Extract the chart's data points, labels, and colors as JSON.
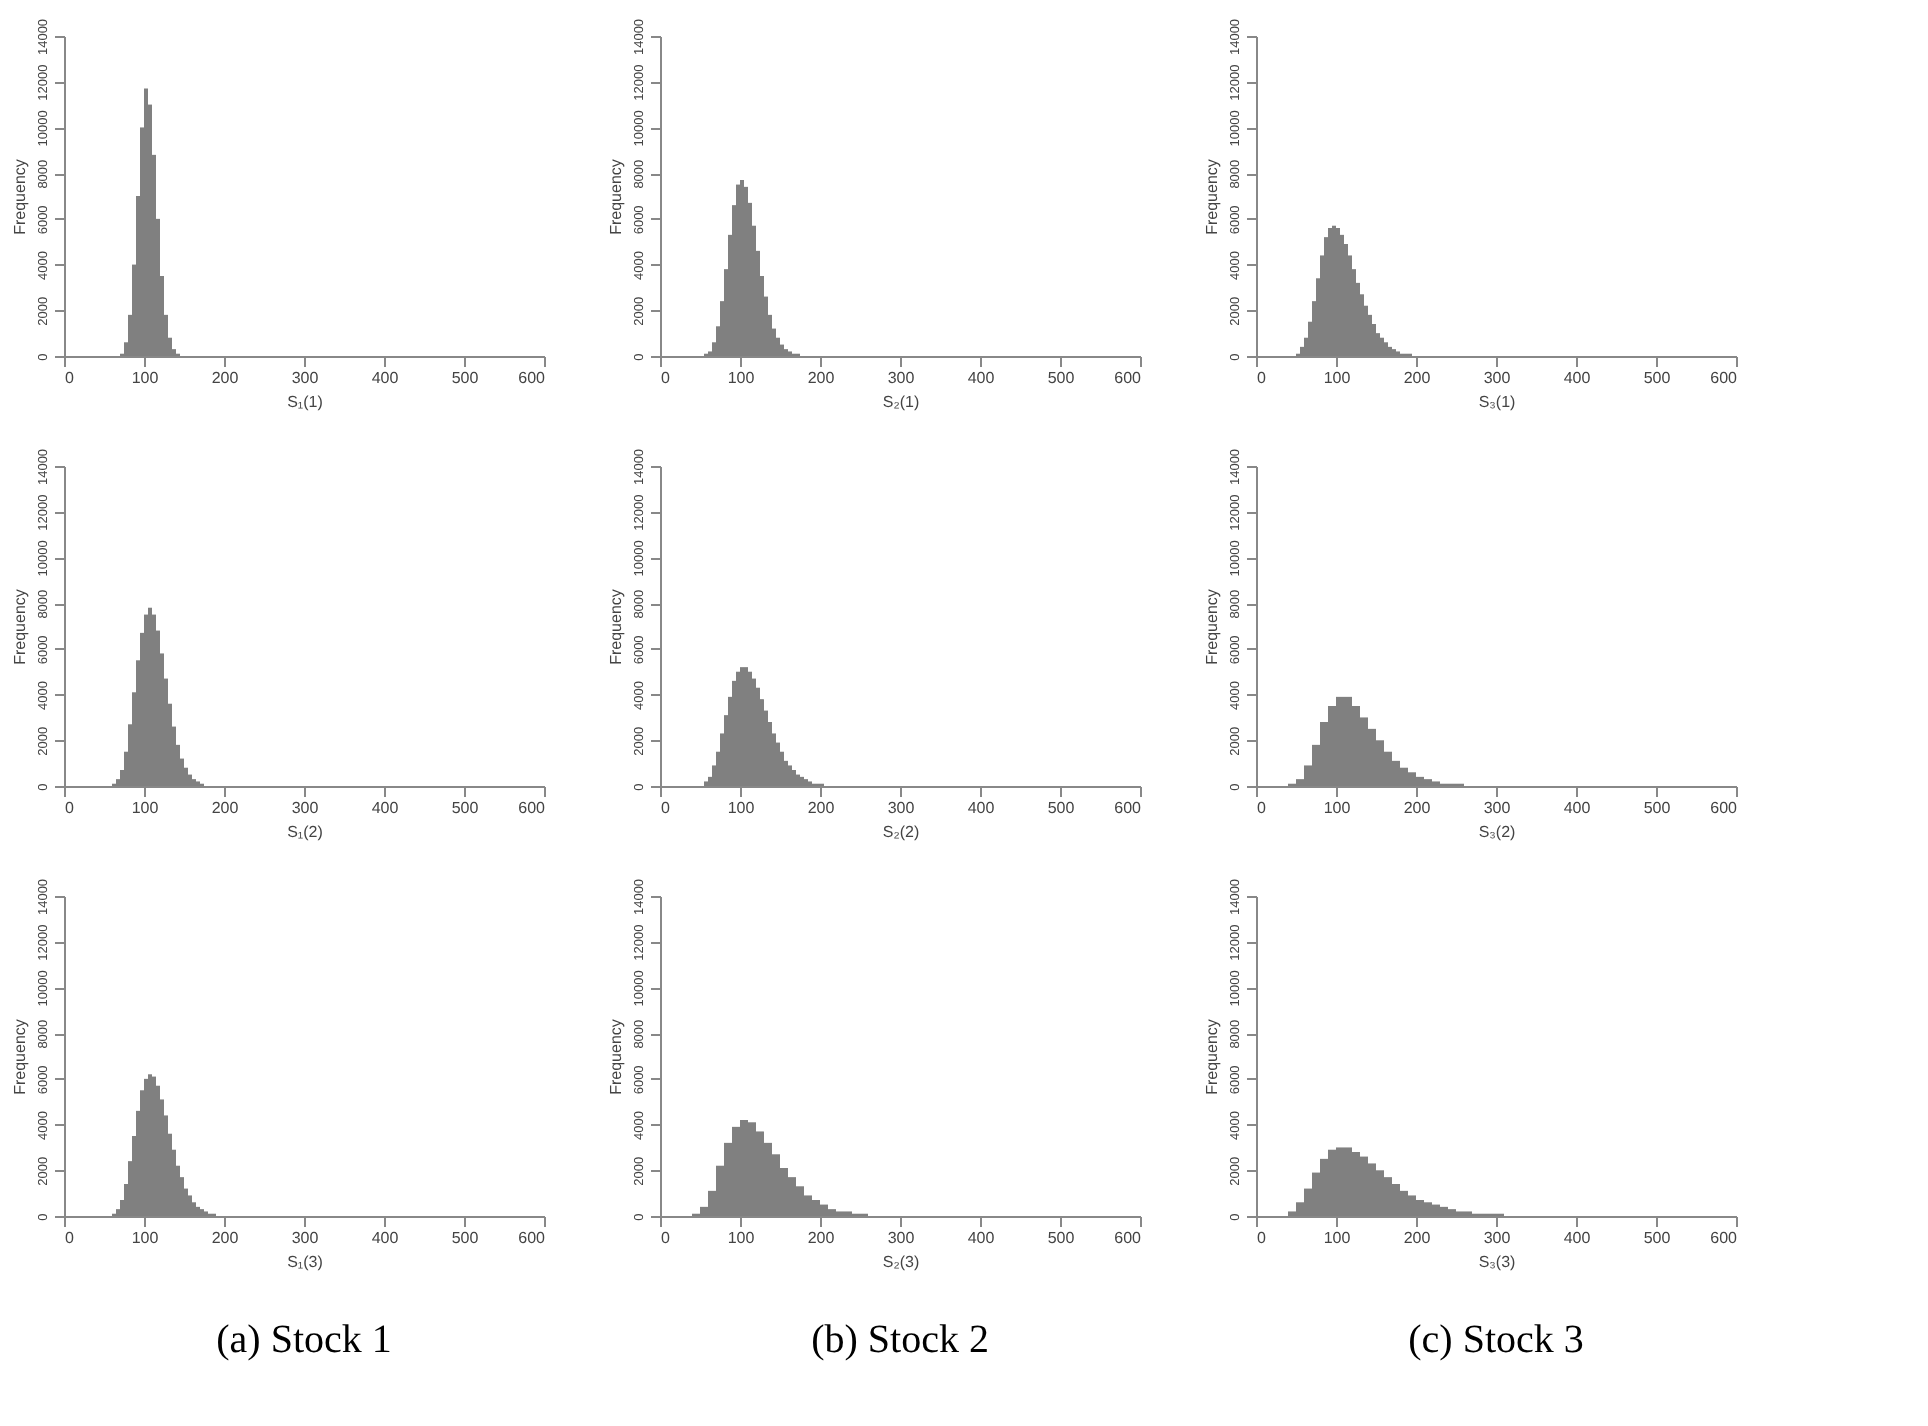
{
  "chart_data": [
    {
      "type": "histogram",
      "xlabel": "S₁(1)",
      "ylabel": "Frequency",
      "color": "#808080",
      "xlim": [
        0,
        600
      ],
      "xticks": [
        0,
        100,
        200,
        300,
        400,
        500,
        600
      ],
      "ylim": [
        0,
        14000
      ],
      "yticks": [
        0,
        2000,
        4000,
        6000,
        8000,
        10000,
        12000,
        14000
      ],
      "grid": false,
      "bins": [
        70,
        75,
        80,
        85,
        90,
        95,
        100,
        105,
        110,
        115,
        120,
        125,
        130,
        135,
        140,
        145
      ],
      "values": [
        100,
        600,
        1800,
        4000,
        7000,
        10000,
        11700,
        11000,
        8800,
        6000,
        3500,
        1800,
        800,
        300,
        100
      ]
    },
    {
      "type": "histogram",
      "xlabel": "S₂(1)",
      "ylabel": "Frequency",
      "color": "#808080",
      "xlim": [
        0,
        600
      ],
      "xticks": [
        0,
        100,
        200,
        300,
        400,
        500,
        600
      ],
      "ylim": [
        0,
        14000
      ],
      "yticks": [
        0,
        2000,
        4000,
        6000,
        8000,
        10000,
        12000,
        14000
      ],
      "grid": false,
      "bins": [
        55,
        60,
        65,
        70,
        75,
        80,
        85,
        90,
        95,
        100,
        105,
        110,
        115,
        120,
        125,
        130,
        135,
        140,
        145,
        150,
        155,
        160,
        165,
        170,
        175
      ],
      "values": [
        100,
        200,
        600,
        1300,
        2400,
        3800,
        5300,
        6600,
        7500,
        7700,
        7400,
        6700,
        5700,
        4600,
        3500,
        2600,
        1800,
        1200,
        800,
        500,
        300,
        200,
        100,
        100
      ]
    },
    {
      "type": "histogram",
      "xlabel": "S₃(1)",
      "ylabel": "Frequency",
      "color": "#808080",
      "xlim": [
        0,
        600
      ],
      "xticks": [
        0,
        100,
        200,
        300,
        400,
        500,
        600
      ],
      "ylim": [
        0,
        14000
      ],
      "yticks": [
        0,
        2000,
        4000,
        6000,
        8000,
        10000,
        12000,
        14000
      ],
      "grid": false,
      "bins": [
        50,
        55,
        60,
        65,
        70,
        75,
        80,
        85,
        90,
        95,
        100,
        105,
        110,
        115,
        120,
        125,
        130,
        135,
        140,
        145,
        150,
        155,
        160,
        165,
        170,
        175,
        180,
        185,
        190,
        195
      ],
      "values": [
        100,
        400,
        800,
        1500,
        2400,
        3400,
        4400,
        5200,
        5600,
        5700,
        5600,
        5300,
        4900,
        4400,
        3800,
        3200,
        2700,
        2200,
        1800,
        1400,
        1000,
        800,
        600,
        400,
        300,
        200,
        100,
        100,
        100
      ]
    },
    {
      "type": "histogram",
      "xlabel": "S₁(2)",
      "ylabel": "Frequency",
      "color": "#808080",
      "xlim": [
        0,
        600
      ],
      "xticks": [
        0,
        100,
        200,
        300,
        400,
        500,
        600
      ],
      "ylim": [
        0,
        14000
      ],
      "yticks": [
        0,
        2000,
        4000,
        6000,
        8000,
        10000,
        12000,
        14000
      ],
      "grid": false,
      "bins": [
        60,
        65,
        70,
        75,
        80,
        85,
        90,
        95,
        100,
        105,
        110,
        115,
        120,
        125,
        130,
        135,
        140,
        145,
        150,
        155,
        160,
        165,
        170,
        175
      ],
      "values": [
        100,
        300,
        700,
        1500,
        2700,
        4100,
        5500,
        6700,
        7500,
        7800,
        7500,
        6800,
        5800,
        4700,
        3600,
        2600,
        1800,
        1200,
        800,
        500,
        300,
        200,
        100
      ]
    },
    {
      "type": "histogram",
      "xlabel": "S₂(2)",
      "ylabel": "Frequency",
      "color": "#808080",
      "xlim": [
        0,
        600
      ],
      "xticks": [
        0,
        100,
        200,
        300,
        400,
        500,
        600
      ],
      "ylim": [
        0,
        14000
      ],
      "yticks": [
        0,
        2000,
        4000,
        6000,
        8000,
        10000,
        12000,
        14000
      ],
      "grid": false,
      "bins": [
        55,
        60,
        65,
        70,
        75,
        80,
        85,
        90,
        95,
        100,
        105,
        110,
        115,
        120,
        125,
        130,
        135,
        140,
        145,
        150,
        155,
        160,
        165,
        170,
        175,
        180,
        185,
        190,
        195,
        200,
        205
      ],
      "values": [
        200,
        400,
        900,
        1500,
        2300,
        3100,
        3900,
        4600,
        5000,
        5200,
        5200,
        5000,
        4700,
        4300,
        3800,
        3300,
        2800,
        2300,
        1900,
        1500,
        1100,
        900,
        700,
        500,
        400,
        300,
        200,
        100,
        100,
        100
      ]
    },
    {
      "type": "histogram",
      "xlabel": "S₃(2)",
      "ylabel": "Frequency",
      "color": "#808080",
      "xlim": [
        0,
        600
      ],
      "xticks": [
        0,
        100,
        200,
        300,
        400,
        500,
        600
      ],
      "ylim": [
        0,
        14000
      ],
      "yticks": [
        0,
        2000,
        4000,
        6000,
        8000,
        10000,
        12000,
        14000
      ],
      "grid": false,
      "bins": [
        40,
        50,
        60,
        70,
        80,
        90,
        100,
        110,
        120,
        130,
        140,
        150,
        160,
        170,
        180,
        190,
        200,
        210,
        220,
        230,
        240,
        250,
        260
      ],
      "values": [
        100,
        300,
        900,
        1800,
        2800,
        3500,
        3900,
        3900,
        3500,
        3000,
        2500,
        2000,
        1500,
        1100,
        800,
        600,
        400,
        300,
        200,
        100,
        100,
        100
      ]
    },
    {
      "type": "histogram",
      "xlabel": "S₁(3)",
      "ylabel": "Frequency",
      "color": "#808080",
      "xlim": [
        0,
        600
      ],
      "xticks": [
        0,
        100,
        200,
        300,
        400,
        500,
        600
      ],
      "ylim": [
        0,
        14000
      ],
      "yticks": [
        0,
        2000,
        4000,
        6000,
        8000,
        10000,
        12000,
        14000
      ],
      "grid": false,
      "annotations": [
        "(a) Stock 1"
      ],
      "bins": [
        60,
        65,
        70,
        75,
        80,
        85,
        90,
        95,
        100,
        105,
        110,
        115,
        120,
        125,
        130,
        135,
        140,
        145,
        150,
        155,
        160,
        165,
        170,
        175,
        180,
        185,
        190
      ],
      "values": [
        100,
        300,
        700,
        1400,
        2400,
        3500,
        4600,
        5500,
        6000,
        6200,
        6100,
        5700,
        5100,
        4400,
        3600,
        2900,
        2200,
        1700,
        1200,
        900,
        600,
        400,
        300,
        200,
        100,
        100
      ]
    },
    {
      "type": "histogram",
      "xlabel": "S₂(3)",
      "ylabel": "Frequency",
      "color": "#808080",
      "xlim": [
        0,
        600
      ],
      "xticks": [
        0,
        100,
        200,
        300,
        400,
        500,
        600
      ],
      "ylim": [
        0,
        14000
      ],
      "yticks": [
        0,
        2000,
        4000,
        6000,
        8000,
        10000,
        12000,
        14000
      ],
      "grid": false,
      "annotations": [
        "(b) Stock 2"
      ],
      "bins": [
        40,
        50,
        60,
        70,
        80,
        90,
        100,
        110,
        120,
        130,
        140,
        150,
        160,
        170,
        180,
        190,
        200,
        210,
        220,
        230,
        240,
        250,
        260
      ],
      "values": [
        100,
        400,
        1100,
        2200,
        3200,
        3900,
        4200,
        4100,
        3700,
        3200,
        2700,
        2100,
        1700,
        1300,
        900,
        700,
        500,
        300,
        200,
        200,
        100,
        100
      ]
    },
    {
      "type": "histogram",
      "xlabel": "S₃(3)",
      "ylabel": "Frequency",
      "color": "#808080",
      "xlim": [
        0,
        600
      ],
      "xticks": [
        0,
        100,
        200,
        300,
        400,
        500,
        600
      ],
      "ylim": [
        0,
        14000
      ],
      "yticks": [
        0,
        2000,
        4000,
        6000,
        8000,
        10000,
        12000,
        14000
      ],
      "grid": false,
      "annotations": [
        "(c) Stock 3"
      ],
      "bins": [
        40,
        50,
        60,
        70,
        80,
        90,
        100,
        110,
        120,
        130,
        140,
        150,
        160,
        170,
        180,
        190,
        200,
        210,
        220,
        230,
        240,
        250,
        260,
        270,
        280,
        290,
        300,
        310
      ],
      "values": [
        200,
        600,
        1200,
        1900,
        2500,
        2900,
        3000,
        3000,
        2800,
        2600,
        2300,
        2000,
        1700,
        1400,
        1100,
        900,
        700,
        600,
        500,
        400,
        300,
        200,
        200,
        100,
        100,
        100,
        100
      ]
    }
  ]
}
